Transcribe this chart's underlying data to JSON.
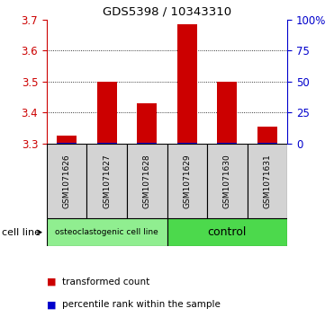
{
  "title": "GDS5398 / 10343310",
  "samples": [
    "GSM1071626",
    "GSM1071627",
    "GSM1071628",
    "GSM1071629",
    "GSM1071630",
    "GSM1071631"
  ],
  "red_values": [
    3.325,
    3.5,
    3.43,
    3.685,
    3.5,
    3.355
  ],
  "blue_values": [
    3.302,
    3.302,
    3.302,
    3.302,
    3.302,
    3.302
  ],
  "ylim_left": [
    3.3,
    3.7
  ],
  "yticks_left": [
    3.3,
    3.4,
    3.5,
    3.6,
    3.7
  ],
  "yticks_right": [
    0,
    25,
    50,
    75,
    100
  ],
  "ylim_right": [
    0,
    100
  ],
  "bar_bottom": 3.3,
  "group_configs": [
    {
      "label": "osteoclastogenic cell line",
      "xmin": -0.5,
      "xmax": 2.5,
      "color": "#90EE90",
      "fontsize": 6.5
    },
    {
      "label": "control",
      "xmin": 2.5,
      "xmax": 5.5,
      "color": "#4CD94C",
      "fontsize": 9
    }
  ],
  "cell_line_label": "cell line",
  "legend_items": [
    {
      "color": "#CC0000",
      "label": "transformed count"
    },
    {
      "color": "#0000CC",
      "label": "percentile rank within the sample"
    }
  ],
  "left_axis_color": "#CC0000",
  "right_axis_color": "#0000CC",
  "sample_box_color": "#D3D3D3",
  "bar_width": 0.5
}
